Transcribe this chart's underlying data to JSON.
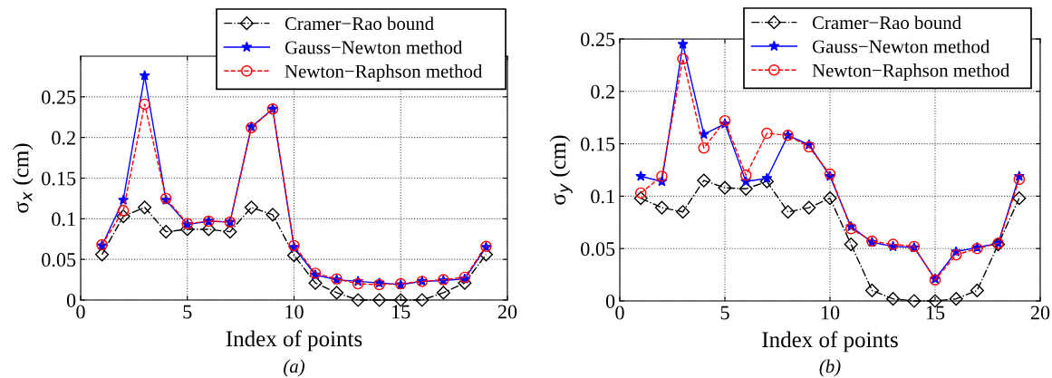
{
  "chart_data": [
    {
      "type": "line",
      "xlabel": "Index of points",
      "ylabel": "σ$_{x}$ (cm)",
      "annotations": [
        "(a)"
      ],
      "x": [
        1,
        2,
        3,
        4,
        5,
        6,
        7,
        8,
        9,
        10,
        11,
        12,
        13,
        14,
        15,
        16,
        17,
        18,
        19
      ],
      "xlim": [
        0,
        20
      ],
      "xticks": [
        0,
        5,
        10,
        15,
        20
      ],
      "ylim": [
        0,
        0.3
      ],
      "yticks": [
        0,
        0.05,
        0.1,
        0.15,
        0.2,
        0.25
      ],
      "grid": true,
      "legend": "top right",
      "series": [
        {
          "name": "Cramer−Rao bound",
          "color": "#000000",
          "marker": "diamond",
          "line_style": "dashdot",
          "values": [
            0.056,
            0.103,
            0.114,
            0.084,
            0.087,
            0.087,
            0.084,
            0.114,
            0.105,
            0.055,
            0.021,
            0.009,
            0,
            0,
            0,
            0,
            0.009,
            0.021,
            0.056
          ]
        },
        {
          "name": "Gauss−Newton method",
          "color": "#0000ff",
          "marker": "star",
          "line_style": "solid",
          "values": [
            0.067,
            0.123,
            0.276,
            0.123,
            0.093,
            0.097,
            0.096,
            0.213,
            0.235,
            0.065,
            0.031,
            0.025,
            0.023,
            0.021,
            0.019,
            0.023,
            0.024,
            0.026,
            0.065
          ]
        },
        {
          "name": "Newton−Raphson method",
          "color": "#ff0000",
          "marker": "circle",
          "line_style": "dashed",
          "values": [
            0.068,
            0.11,
            0.241,
            0.125,
            0.094,
            0.097,
            0.096,
            0.212,
            0.235,
            0.067,
            0.033,
            0.026,
            0.02,
            0.019,
            0.02,
            0.023,
            0.025,
            0.028,
            0.066
          ]
        }
      ]
    },
    {
      "type": "line",
      "xlabel": "Index of points",
      "ylabel": "σ$_{y}$ (cm)",
      "annotations": [
        "(b)"
      ],
      "x": [
        1,
        2,
        3,
        4,
        5,
        6,
        7,
        8,
        9,
        10,
        11,
        12,
        13,
        14,
        15,
        16,
        17,
        18,
        19
      ],
      "xlim": [
        0,
        20
      ],
      "xticks": [
        0,
        5,
        10,
        15,
        20
      ],
      "ylim": [
        0,
        0.25
      ],
      "yticks": [
        0,
        0.05,
        0.1,
        0.15,
        0.2,
        0.25
      ],
      "grid": true,
      "legend": "top right",
      "series": [
        {
          "name": "Cramer−Rao bound",
          "color": "#000000",
          "marker": "diamond",
          "line_style": "dashdot",
          "values": [
            0.098,
            0.089,
            0.085,
            0.115,
            0.108,
            0.107,
            0.114,
            0.085,
            0.089,
            0.098,
            0.054,
            0.01,
            0.002,
            0,
            0,
            0.002,
            0.01,
            0.054,
            0.098
          ]
        },
        {
          "name": "Gauss−Newton method",
          "color": "#0000ff",
          "marker": "star",
          "line_style": "solid",
          "values": [
            0.119,
            0.114,
            0.245,
            0.159,
            0.169,
            0.114,
            0.117,
            0.158,
            0.149,
            0.119,
            0.071,
            0.056,
            0.052,
            0.051,
            0.021,
            0.047,
            0.051,
            0.055,
            0.119
          ]
        },
        {
          "name": "Newton−Raphson method",
          "color": "#ff0000",
          "marker": "circle",
          "line_style": "dashed",
          "values": [
            0.103,
            0.119,
            0.231,
            0.146,
            0.172,
            0.12,
            0.16,
            0.158,
            0.147,
            0.121,
            0.069,
            0.057,
            0.054,
            0.052,
            0.02,
            0.044,
            0.05,
            0.055,
            0.116
          ]
        }
      ]
    }
  ]
}
